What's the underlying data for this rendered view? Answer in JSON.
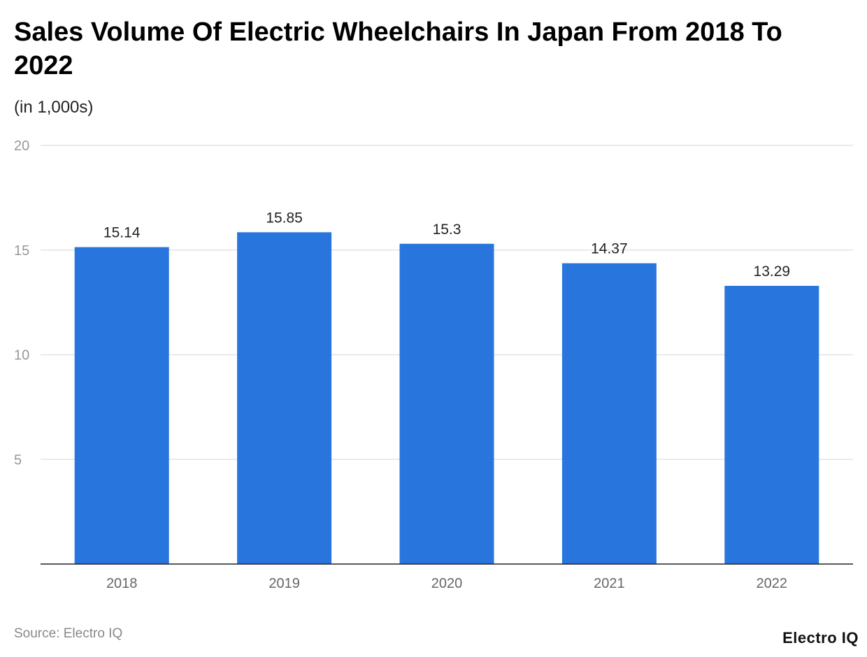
{
  "chart_data": {
    "type": "bar",
    "title": "Sales Volume Of Electric Wheelchairs In Japan From 2018 To 2022",
    "subtitle": "(in 1,000s)",
    "categories": [
      "2018",
      "2019",
      "2020",
      "2021",
      "2022"
    ],
    "values": [
      15.14,
      15.85,
      15.3,
      14.37,
      13.29
    ],
    "data_labels": [
      "15.14",
      "15.85",
      "15.3",
      "14.37",
      "13.29"
    ],
    "ylim": [
      0,
      20
    ],
    "yticks": [
      5,
      10,
      15,
      20
    ],
    "ytick_labels": [
      "5",
      "10",
      "15",
      "20"
    ],
    "grid": true,
    "bar_color": "#2876dd"
  },
  "footer": {
    "source": "Source: Electro IQ",
    "logo": "Electro IQ"
  }
}
